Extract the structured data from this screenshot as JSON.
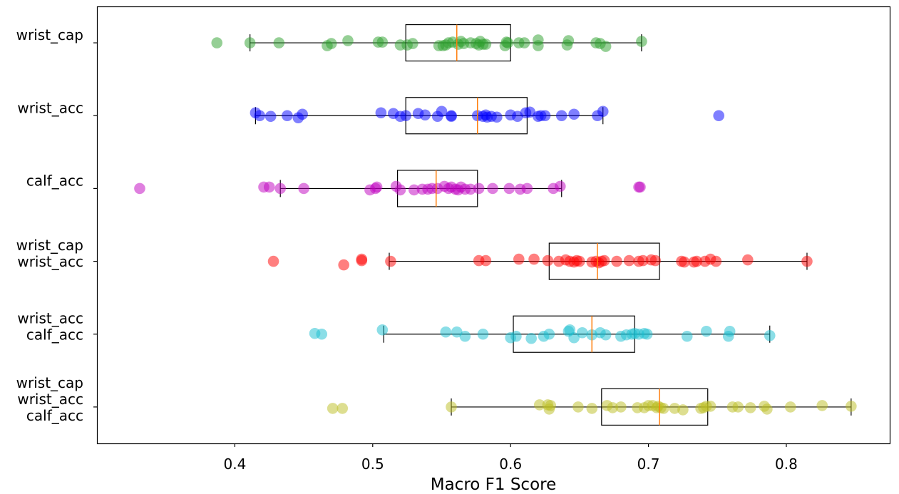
{
  "chart_data": {
    "type": "scatter",
    "subtype": "jittered strip plot with horizontal box plots",
    "xlabel": "Macro F1 Score",
    "ylabel": "",
    "xlim": [
      0.3,
      0.875
    ],
    "xticks": [
      0.4,
      0.5,
      0.6,
      0.7,
      0.8
    ],
    "xtick_labels": [
      "0.4",
      "0.5",
      "0.6",
      "0.7",
      "0.8"
    ],
    "grid": false,
    "series": [
      {
        "name": "wrist_cap",
        "label_lines": [
          "wrist_cap"
        ],
        "color": "#2ca02c",
        "box": {
          "whisker_low": 0.411,
          "q1": 0.524,
          "median": 0.561,
          "q3": 0.6,
          "whisker_high": 0.695
        },
        "points": [
          [
            0.387,
            0.0
          ],
          [
            0.411,
            0.0
          ],
          [
            0.432,
            0.0
          ],
          [
            0.467,
            0.4
          ],
          [
            0.47,
            0.1
          ],
          [
            0.482,
            -0.3
          ],
          [
            0.504,
            -0.1
          ],
          [
            0.507,
            -0.1
          ],
          [
            0.52,
            0.3
          ],
          [
            0.525,
            0.3
          ],
          [
            0.529,
            0.1
          ],
          [
            0.548,
            0.4
          ],
          [
            0.551,
            0.4
          ],
          [
            0.553,
            0.3
          ],
          [
            0.555,
            0.0
          ],
          [
            0.558,
            -0.1
          ],
          [
            0.562,
            0.2
          ],
          [
            0.564,
            -0.2
          ],
          [
            0.566,
            0.1
          ],
          [
            0.571,
            0.0
          ],
          [
            0.575,
            0.1
          ],
          [
            0.577,
            0.3
          ],
          [
            0.578,
            -0.2
          ],
          [
            0.58,
            0.2
          ],
          [
            0.582,
            0.2
          ],
          [
            0.596,
            0.4
          ],
          [
            0.597,
            -0.1
          ],
          [
            0.598,
            0.0
          ],
          [
            0.606,
            0.0
          ],
          [
            0.61,
            0.0
          ],
          [
            0.62,
            0.4
          ],
          [
            0.62,
            -0.4
          ],
          [
            0.641,
            0.3
          ],
          [
            0.642,
            -0.3
          ],
          [
            0.662,
            0.0
          ],
          [
            0.665,
            0.1
          ],
          [
            0.669,
            0.5
          ],
          [
            0.695,
            -0.2
          ]
        ]
      },
      {
        "name": "wrist_acc",
        "label_lines": [
          "wrist_acc"
        ],
        "color": "#0000ff",
        "box": {
          "whisker_low": 0.415,
          "q1": 0.524,
          "median": 0.576,
          "q3": 0.612,
          "whisker_high": 0.667
        },
        "points": [
          [
            0.415,
            -0.4
          ],
          [
            0.418,
            0.0
          ],
          [
            0.426,
            0.1
          ],
          [
            0.438,
            0.0
          ],
          [
            0.446,
            0.3
          ],
          [
            0.449,
            -0.2
          ],
          [
            0.506,
            -0.4
          ],
          [
            0.515,
            -0.3
          ],
          [
            0.52,
            0.1
          ],
          [
            0.524,
            0.0
          ],
          [
            0.533,
            -0.3
          ],
          [
            0.538,
            -0.1
          ],
          [
            0.547,
            0.1
          ],
          [
            0.55,
            -0.6
          ],
          [
            0.557,
            0.1
          ],
          [
            0.557,
            0.0
          ],
          [
            0.576,
            0.0
          ],
          [
            0.58,
            0.1
          ],
          [
            0.582,
            -0.1
          ],
          [
            0.583,
            0.2
          ],
          [
            0.586,
            0.1
          ],
          [
            0.59,
            0.2
          ],
          [
            0.6,
            -0.1
          ],
          [
            0.605,
            0.1
          ],
          [
            0.611,
            -0.4
          ],
          [
            0.614,
            -0.5
          ],
          [
            0.62,
            0.1
          ],
          [
            0.622,
            0.0
          ],
          [
            0.625,
            0.0
          ],
          [
            0.637,
            0.0
          ],
          [
            0.646,
            -0.2
          ],
          [
            0.663,
            0.0
          ],
          [
            0.667,
            -0.6
          ],
          [
            0.751,
            0.0
          ]
        ]
      },
      {
        "name": "calf_acc",
        "label_lines": [
          "calf_acc"
        ],
        "color": "#bf00bf",
        "box": {
          "whisker_low": 0.433,
          "q1": 0.518,
          "median": 0.546,
          "q3": 0.576,
          "whisker_high": 0.637
        },
        "points": [
          [
            0.331,
            0.0
          ],
          [
            0.421,
            -0.2
          ],
          [
            0.425,
            -0.2
          ],
          [
            0.433,
            0.0
          ],
          [
            0.45,
            0.0
          ],
          [
            0.498,
            0.2
          ],
          [
            0.502,
            0.0
          ],
          [
            0.503,
            -0.2
          ],
          [
            0.517,
            -0.3
          ],
          [
            0.52,
            0.2
          ],
          [
            0.53,
            0.2
          ],
          [
            0.536,
            0.1
          ],
          [
            0.54,
            0.1
          ],
          [
            0.543,
            0.0
          ],
          [
            0.547,
            0.0
          ],
          [
            0.552,
            -0.3
          ],
          [
            0.555,
            0.0
          ],
          [
            0.557,
            -0.2
          ],
          [
            0.56,
            0.1
          ],
          [
            0.562,
            0.2
          ],
          [
            0.564,
            -0.2
          ],
          [
            0.567,
            0.1
          ],
          [
            0.571,
            0.1
          ],
          [
            0.577,
            0.0
          ],
          [
            0.587,
            0.0
          ],
          [
            0.599,
            0.0
          ],
          [
            0.607,
            0.1
          ],
          [
            0.612,
            0.0
          ],
          [
            0.631,
            0.0
          ],
          [
            0.636,
            -0.3
          ],
          [
            0.693,
            -0.2
          ],
          [
            0.694,
            -0.2
          ]
        ]
      },
      {
        "name": "wrist_cap + wrist_acc",
        "label_lines": [
          "wrist_cap",
          "wrist_acc"
        ],
        "color": "#ff0000",
        "box": {
          "whisker_low": 0.512,
          "q1": 0.628,
          "median": 0.663,
          "q3": 0.708,
          "whisker_high": 0.815
        },
        "points": [
          [
            0.428,
            0.0
          ],
          [
            0.479,
            0.5
          ],
          [
            0.492,
            -0.3
          ],
          [
            0.492,
            -0.1
          ],
          [
            0.513,
            0.0
          ],
          [
            0.577,
            -0.1
          ],
          [
            0.582,
            -0.1
          ],
          [
            0.606,
            -0.3
          ],
          [
            0.617,
            -0.3
          ],
          [
            0.627,
            -0.1
          ],
          [
            0.635,
            0.0
          ],
          [
            0.64,
            -0.2
          ],
          [
            0.643,
            0.0
          ],
          [
            0.646,
            0.1
          ],
          [
            0.648,
            -0.1
          ],
          [
            0.65,
            0.0
          ],
          [
            0.659,
            0.1
          ],
          [
            0.662,
            0.0
          ],
          [
            0.664,
            0.2
          ],
          [
            0.666,
            0.0
          ],
          [
            0.668,
            -0.1
          ],
          [
            0.677,
            0.0
          ],
          [
            0.686,
            -0.1
          ],
          [
            0.693,
            0.0
          ],
          [
            0.696,
            -0.1
          ],
          [
            0.702,
            -0.2
          ],
          [
            0.705,
            -0.1
          ],
          [
            0.724,
            0.0
          ],
          [
            0.726,
            0.1
          ],
          [
            0.733,
            0.1
          ],
          [
            0.735,
            0.0
          ],
          [
            0.741,
            0.0
          ],
          [
            0.745,
            -0.3
          ],
          [
            0.749,
            0.0
          ],
          [
            0.772,
            -0.2
          ],
          [
            0.815,
            0.0
          ]
        ]
      },
      {
        "name": "wrist_acc + calf_acc",
        "label_lines": [
          "wrist_acc",
          "calf_acc"
        ],
        "color": "#17becf",
        "box": {
          "whisker_low": 0.508,
          "q1": 0.602,
          "median": 0.659,
          "q3": 0.69,
          "whisker_high": 0.788
        },
        "points": [
          [
            0.458,
            -0.1
          ],
          [
            0.463,
            0.0
          ],
          [
            0.507,
            -0.6
          ],
          [
            0.553,
            -0.3
          ],
          [
            0.561,
            -0.3
          ],
          [
            0.567,
            0.3
          ],
          [
            0.58,
            0.0
          ],
          [
            0.6,
            0.5
          ],
          [
            0.604,
            0.3
          ],
          [
            0.615,
            0.6
          ],
          [
            0.624,
            0.3
          ],
          [
            0.628,
            0.0
          ],
          [
            0.642,
            -0.4
          ],
          [
            0.643,
            -0.6
          ],
          [
            0.646,
            0.5
          ],
          [
            0.652,
            -0.2
          ],
          [
            0.659,
            0.1
          ],
          [
            0.665,
            -0.2
          ],
          [
            0.669,
            0.1
          ],
          [
            0.68,
            0.3
          ],
          [
            0.684,
            0.1
          ],
          [
            0.688,
            0.0
          ],
          [
            0.69,
            -0.1
          ],
          [
            0.693,
            0.0
          ],
          [
            0.697,
            -0.1
          ],
          [
            0.699,
            0.0
          ],
          [
            0.728,
            0.3
          ],
          [
            0.742,
            -0.4
          ],
          [
            0.758,
            0.3
          ],
          [
            0.759,
            -0.4
          ],
          [
            0.788,
            0.2
          ]
        ]
      },
      {
        "name": "wrist_cap + wrist_acc + calf_acc",
        "label_lines": [
          "wrist_cap",
          "wrist_acc",
          "calf_acc"
        ],
        "color": "#bcbd22",
        "box": {
          "whisker_low": 0.557,
          "q1": 0.666,
          "median": 0.708,
          "q3": 0.743,
          "whisker_high": 0.847
        },
        "points": [
          [
            0.471,
            0.2
          ],
          [
            0.478,
            0.2
          ],
          [
            0.557,
            0.0
          ],
          [
            0.621,
            -0.3
          ],
          [
            0.627,
            -0.3
          ],
          [
            0.628,
            0.3
          ],
          [
            0.629,
            -0.2
          ],
          [
            0.649,
            0.0
          ],
          [
            0.659,
            0.2
          ],
          [
            0.67,
            -0.2
          ],
          [
            0.674,
            0.1
          ],
          [
            0.68,
            0.0
          ],
          [
            0.692,
            0.1
          ],
          [
            0.697,
            0.1
          ],
          [
            0.7,
            -0.2
          ],
          [
            0.703,
            -0.2
          ],
          [
            0.706,
            0.1
          ],
          [
            0.707,
            -0.1
          ],
          [
            0.709,
            0.1
          ],
          [
            0.711,
            0.2
          ],
          [
            0.719,
            0.2
          ],
          [
            0.725,
            0.4
          ],
          [
            0.738,
            0.2
          ],
          [
            0.74,
            0.1
          ],
          [
            0.742,
            -0.1
          ],
          [
            0.745,
            -0.1
          ],
          [
            0.761,
            0.0
          ],
          [
            0.765,
            0.0
          ],
          [
            0.774,
            0.1
          ],
          [
            0.784,
            -0.1
          ],
          [
            0.786,
            0.3
          ],
          [
            0.803,
            0.0
          ],
          [
            0.826,
            -0.2
          ],
          [
            0.847,
            -0.1
          ]
        ]
      }
    ]
  }
}
